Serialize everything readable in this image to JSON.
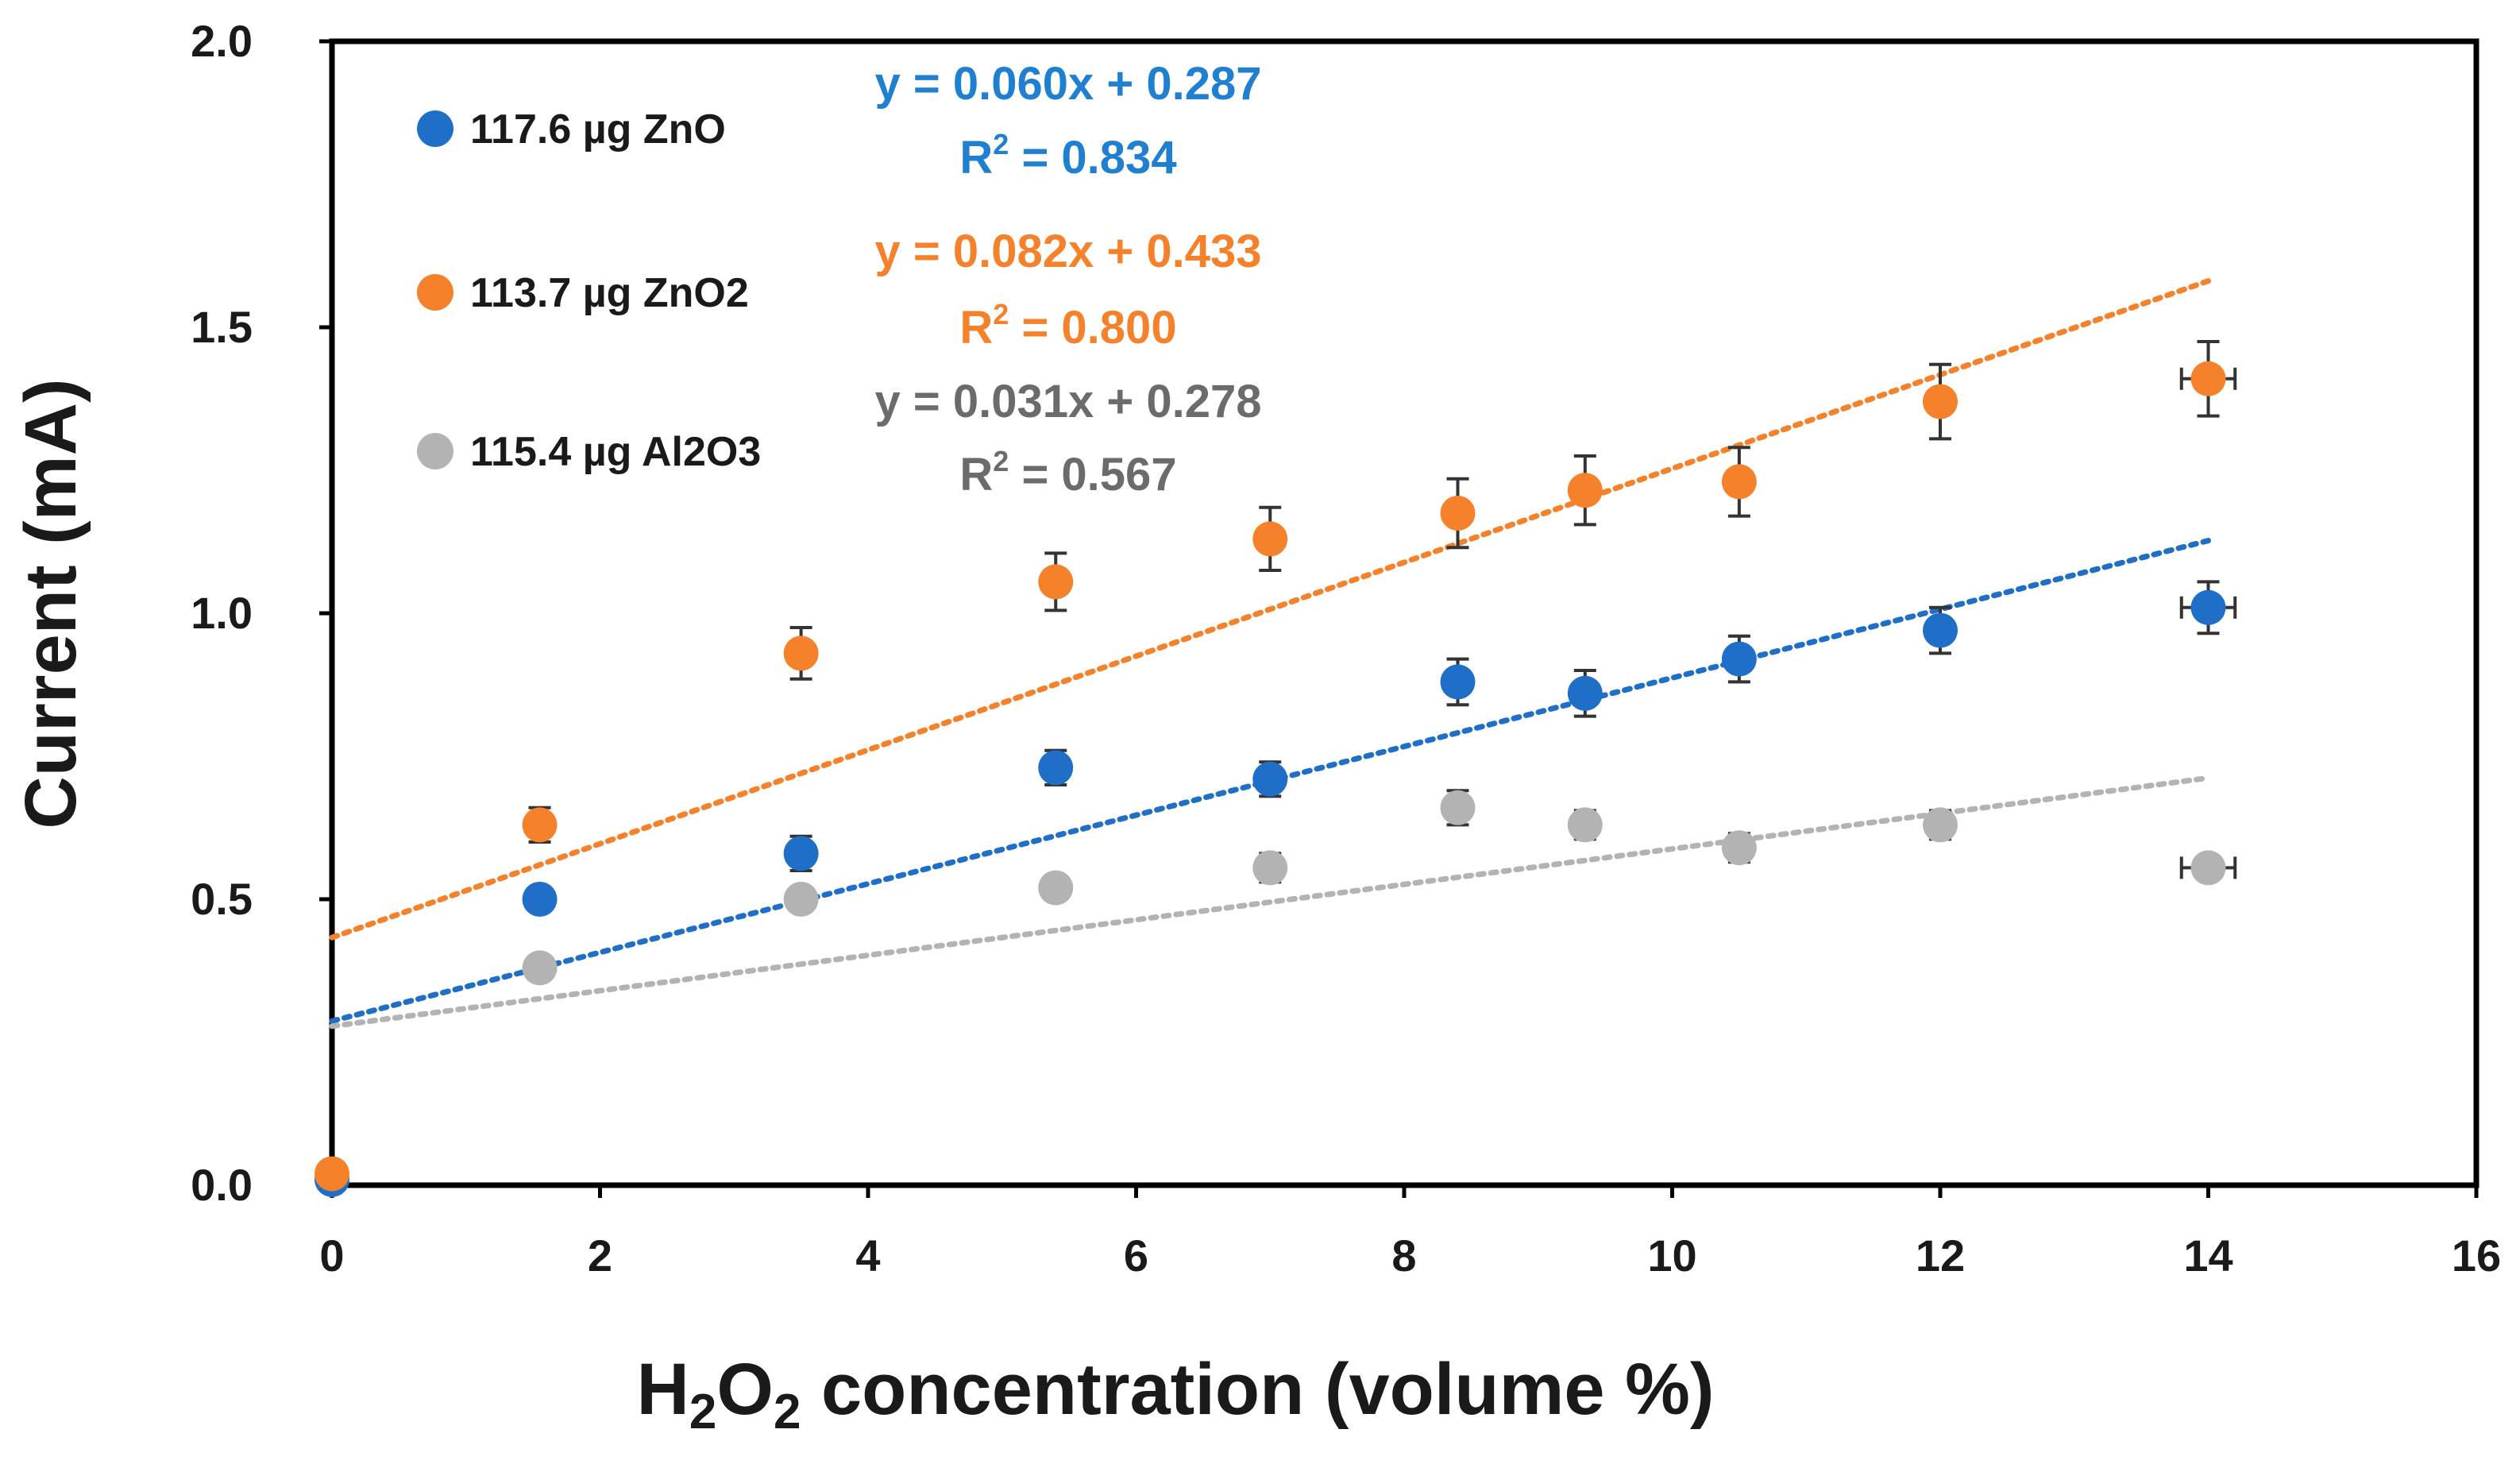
{
  "chart_data": {
    "type": "scatter",
    "xlabel": {
      "main": "H",
      "sub1": "2",
      "mid": "O",
      "sub2": "2",
      "rest": " concentration (volume %)"
    },
    "ylabel": "Current (mA)",
    "xlim": [
      0,
      16
    ],
    "ylim": [
      0,
      2.0
    ],
    "xticks": [
      0,
      2,
      4,
      6,
      8,
      10,
      12,
      14,
      16
    ],
    "xtick_labels": [
      "0",
      "2",
      "4",
      "6",
      "8",
      "10",
      "12",
      "14",
      "16"
    ],
    "yticks": [
      0,
      0.5,
      1.0,
      1.5,
      2.0
    ],
    "ytick_labels": [
      "0.0",
      "0.5",
      "1.0",
      "1.5",
      "2.0"
    ],
    "grid": false,
    "legend_position": "top-left",
    "series": [
      {
        "name": "117.6 µg ZnO",
        "color": "#1f6fc8",
        "x": [
          0,
          1.55,
          3.5,
          5.4,
          7.0,
          8.4,
          9.35,
          10.5,
          12.0,
          14.0
        ],
        "y": [
          0.01,
          0.5,
          0.58,
          0.73,
          0.71,
          0.88,
          0.86,
          0.92,
          0.97,
          1.01
        ],
        "yerr": [
          0,
          0.02,
          0.03,
          0.03,
          0.03,
          0.04,
          0.04,
          0.04,
          0.04,
          0.045
        ],
        "xerr": [
          0,
          0,
          0,
          0,
          0,
          0,
          0,
          0,
          0,
          0.2
        ],
        "trendline": {
          "slope": 0.06,
          "intercept": 0.287,
          "x_range": [
            0,
            14
          ]
        },
        "equation": "y = 0.060x + 0.287",
        "r2_label": "R",
        "r2_value": " = 0.834"
      },
      {
        "name": "113.7 µg ZnO2",
        "color": "#f5822a",
        "x": [
          0,
          1.55,
          3.5,
          5.4,
          7.0,
          8.4,
          9.35,
          10.5,
          12.0,
          14.0
        ],
        "y": [
          0.02,
          0.63,
          0.93,
          1.055,
          1.13,
          1.175,
          1.215,
          1.23,
          1.37,
          1.41
        ],
        "yerr": [
          0,
          0.03,
          0.045,
          0.05,
          0.055,
          0.06,
          0.06,
          0.06,
          0.065,
          0.065
        ],
        "xerr": [
          0,
          0,
          0,
          0,
          0,
          0,
          0,
          0,
          0,
          0.2
        ],
        "trendline": {
          "slope": 0.082,
          "intercept": 0.433,
          "x_range": [
            0,
            14
          ]
        },
        "equation": "y = 0.082x + 0.433",
        "r2_label": "R",
        "r2_value": " = 0.800"
      },
      {
        "name": "115.4 µg Al2O3",
        "color": "#b3b3b3",
        "x": [
          0,
          1.55,
          3.5,
          5.4,
          7.0,
          8.4,
          9.35,
          10.5,
          12.0,
          14.0
        ],
        "y": [
          0.01,
          0.38,
          0.5,
          0.52,
          0.555,
          0.66,
          0.63,
          0.59,
          0.63,
          0.555
        ],
        "yerr": [
          0,
          0.02,
          0.02,
          0.02,
          0.025,
          0.03,
          0.025,
          0.025,
          0.025,
          0.02
        ],
        "xerr": [
          0,
          0,
          0,
          0,
          0,
          0,
          0,
          0,
          0,
          0.2
        ],
        "trendline": {
          "slope": 0.031,
          "intercept": 0.278,
          "x_range": [
            0,
            14
          ]
        },
        "equation": "y = 0.031x + 0.278",
        "r2_label": "R",
        "r2_value": " = 0.567"
      }
    ]
  },
  "eq_colors": [
    "#1f7fd0",
    "#f5822a",
    "#6b6b6b"
  ],
  "r2_superscript": "2"
}
